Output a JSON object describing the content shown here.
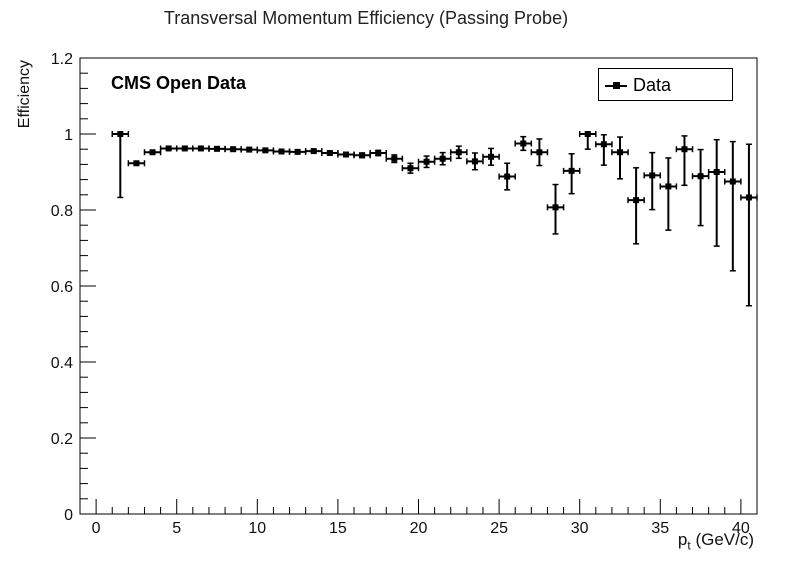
{
  "chart_data": {
    "type": "scatter",
    "title": "Transversal Momentum Efficiency (Passing Probe)",
    "xlabel_main": "p",
    "xlabel_sub": "t",
    "xlabel_unit": "(GeV/c)",
    "ylabel": "Efficiency",
    "annotation": "CMS Open Data",
    "xlim": [
      -1,
      41
    ],
    "ylim": [
      0,
      1.2
    ],
    "x_ticks": [
      0,
      5,
      10,
      15,
      20,
      25,
      30,
      35,
      40
    ],
    "y_ticks": [
      0,
      0.2,
      0.4,
      0.6,
      0.8,
      1,
      1.2
    ],
    "y_tick_labels": [
      "0",
      "0.2",
      "0.4",
      "0.6",
      "0.8",
      "1",
      "1.2"
    ],
    "series": [
      {
        "name": "Data",
        "points": [
          {
            "x": 1.5,
            "y": 1.0,
            "xerr": 0.5,
            "yerr_low": 0.167,
            "yerr_high": 0.0
          },
          {
            "x": 2.5,
            "y": 0.923,
            "xerr": 0.5,
            "yerr_low": 0.005,
            "yerr_high": 0.005
          },
          {
            "x": 3.5,
            "y": 0.952,
            "xerr": 0.5,
            "yerr_low": 0.003,
            "yerr_high": 0.003
          },
          {
            "x": 4.5,
            "y": 0.962,
            "xerr": 0.5,
            "yerr_low": 0.002,
            "yerr_high": 0.002
          },
          {
            "x": 5.5,
            "y": 0.962,
            "xerr": 0.5,
            "yerr_low": 0.002,
            "yerr_high": 0.002
          },
          {
            "x": 6.5,
            "y": 0.962,
            "xerr": 0.5,
            "yerr_low": 0.002,
            "yerr_high": 0.002
          },
          {
            "x": 7.5,
            "y": 0.961,
            "xerr": 0.5,
            "yerr_low": 0.002,
            "yerr_high": 0.002
          },
          {
            "x": 8.5,
            "y": 0.96,
            "xerr": 0.5,
            "yerr_low": 0.002,
            "yerr_high": 0.002
          },
          {
            "x": 9.5,
            "y": 0.959,
            "xerr": 0.5,
            "yerr_low": 0.002,
            "yerr_high": 0.002
          },
          {
            "x": 10.5,
            "y": 0.957,
            "xerr": 0.5,
            "yerr_low": 0.002,
            "yerr_high": 0.002
          },
          {
            "x": 11.5,
            "y": 0.954,
            "xerr": 0.5,
            "yerr_low": 0.002,
            "yerr_high": 0.002
          },
          {
            "x": 12.5,
            "y": 0.953,
            "xerr": 0.5,
            "yerr_low": 0.002,
            "yerr_high": 0.002
          },
          {
            "x": 13.5,
            "y": 0.955,
            "xerr": 0.5,
            "yerr_low": 0.003,
            "yerr_high": 0.003
          },
          {
            "x": 14.5,
            "y": 0.95,
            "xerr": 0.5,
            "yerr_low": 0.003,
            "yerr_high": 0.003
          },
          {
            "x": 15.5,
            "y": 0.946,
            "xerr": 0.5,
            "yerr_low": 0.004,
            "yerr_high": 0.004
          },
          {
            "x": 16.5,
            "y": 0.944,
            "xerr": 0.5,
            "yerr_low": 0.006,
            "yerr_high": 0.006
          },
          {
            "x": 17.5,
            "y": 0.95,
            "xerr": 0.5,
            "yerr_low": 0.007,
            "yerr_high": 0.007
          },
          {
            "x": 18.5,
            "y": 0.935,
            "xerr": 0.5,
            "yerr_low": 0.01,
            "yerr_high": 0.01
          },
          {
            "x": 19.5,
            "y": 0.91,
            "xerr": 0.5,
            "yerr_low": 0.013,
            "yerr_high": 0.013
          },
          {
            "x": 20.5,
            "y": 0.927,
            "xerr": 0.5,
            "yerr_low": 0.015,
            "yerr_high": 0.015
          },
          {
            "x": 21.5,
            "y": 0.935,
            "xerr": 0.5,
            "yerr_low": 0.016,
            "yerr_high": 0.016
          },
          {
            "x": 22.5,
            "y": 0.952,
            "xerr": 0.5,
            "yerr_low": 0.016,
            "yerr_high": 0.016
          },
          {
            "x": 23.5,
            "y": 0.928,
            "xerr": 0.5,
            "yerr_low": 0.022,
            "yerr_high": 0.022
          },
          {
            "x": 24.5,
            "y": 0.94,
            "xerr": 0.5,
            "yerr_low": 0.022,
            "yerr_high": 0.022
          },
          {
            "x": 25.5,
            "y": 0.888,
            "xerr": 0.5,
            "yerr_low": 0.035,
            "yerr_high": 0.035
          },
          {
            "x": 26.5,
            "y": 0.975,
            "xerr": 0.5,
            "yerr_low": 0.018,
            "yerr_high": 0.018
          },
          {
            "x": 27.5,
            "y": 0.952,
            "xerr": 0.5,
            "yerr_low": 0.035,
            "yerr_high": 0.035
          },
          {
            "x": 28.5,
            "y": 0.807,
            "xerr": 0.5,
            "yerr_low": 0.07,
            "yerr_high": 0.06
          },
          {
            "x": 29.5,
            "y": 0.903,
            "xerr": 0.5,
            "yerr_low": 0.06,
            "yerr_high": 0.045
          },
          {
            "x": 30.5,
            "y": 1.0,
            "xerr": 0.5,
            "yerr_low": 0.04,
            "yerr_high": 0.0
          },
          {
            "x": 31.5,
            "y": 0.973,
            "xerr": 0.5,
            "yerr_low": 0.055,
            "yerr_high": 0.025
          },
          {
            "x": 32.5,
            "y": 0.952,
            "xerr": 0.5,
            "yerr_low": 0.07,
            "yerr_high": 0.04
          },
          {
            "x": 33.5,
            "y": 0.826,
            "xerr": 0.5,
            "yerr_low": 0.115,
            "yerr_high": 0.085
          },
          {
            "x": 34.5,
            "y": 0.891,
            "xerr": 0.5,
            "yerr_low": 0.09,
            "yerr_high": 0.06
          },
          {
            "x": 35.5,
            "y": 0.862,
            "xerr": 0.5,
            "yerr_low": 0.115,
            "yerr_high": 0.075
          },
          {
            "x": 36.5,
            "y": 0.96,
            "xerr": 0.5,
            "yerr_low": 0.095,
            "yerr_high": 0.035
          },
          {
            "x": 37.5,
            "y": 0.889,
            "xerr": 0.5,
            "yerr_low": 0.13,
            "yerr_high": 0.07
          },
          {
            "x": 38.5,
            "y": 0.9,
            "xerr": 0.5,
            "yerr_low": 0.195,
            "yerr_high": 0.085
          },
          {
            "x": 39.5,
            "y": 0.875,
            "xerr": 0.5,
            "yerr_low": 0.235,
            "yerr_high": 0.105
          },
          {
            "x": 40.5,
            "y": 0.833,
            "xerr": 0.5,
            "yerr_low": 0.285,
            "yerr_high": 0.14
          }
        ]
      }
    ],
    "grid": false,
    "legend_position": "top-right",
    "color": "#000000"
  }
}
